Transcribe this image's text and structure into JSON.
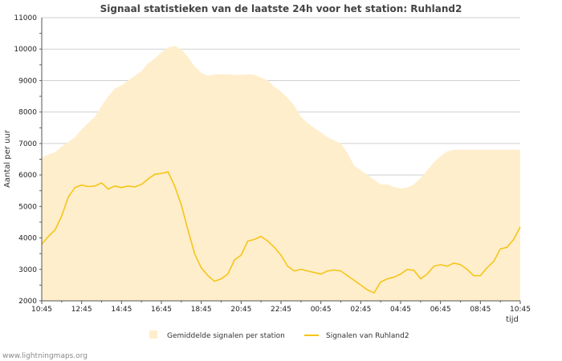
{
  "chart_data": {
    "type": "area",
    "title": "Signaal statistieken van de laatste 24h voor het station: Ruhland2",
    "xlabel": "tijd",
    "ylabel": "Aantal per uur",
    "ylim": [
      2000,
      11000
    ],
    "yticks": [
      2000,
      3000,
      4000,
      5000,
      6000,
      7000,
      8000,
      9000,
      10000,
      11000
    ],
    "x": [
      "10:45",
      "11:05",
      "11:25",
      "11:45",
      "12:05",
      "12:25",
      "12:45",
      "13:05",
      "13:25",
      "13:45",
      "14:05",
      "14:25",
      "14:45",
      "15:05",
      "15:25",
      "15:45",
      "16:05",
      "16:25",
      "16:45",
      "17:05",
      "17:25",
      "17:45",
      "18:05",
      "18:25",
      "18:45",
      "19:05",
      "19:25",
      "19:45",
      "20:05",
      "20:25",
      "20:45",
      "21:05",
      "21:25",
      "21:45",
      "22:05",
      "22:25",
      "22:45",
      "23:05",
      "23:25",
      "23:45",
      "00:05",
      "00:25",
      "00:45",
      "01:05",
      "01:25",
      "01:45",
      "02:05",
      "02:25",
      "02:45",
      "03:05",
      "03:25",
      "03:45",
      "04:05",
      "04:25",
      "04:45",
      "05:05",
      "05:25",
      "05:45",
      "06:05",
      "06:25",
      "06:45",
      "07:05",
      "07:25",
      "07:45",
      "08:05",
      "08:25",
      "08:45",
      "09:05",
      "09:25",
      "09:45",
      "10:05",
      "10:25",
      "10:45"
    ],
    "xticks": [
      "10:45",
      "12:45",
      "14:45",
      "16:45",
      "18:45",
      "20:45",
      "22:45",
      "00:45",
      "02:45",
      "04:45",
      "06:45",
      "08:45",
      "10:45"
    ],
    "series": [
      {
        "name": "Gemiddelde signalen per station",
        "style": "area",
        "color": "#ffeecc",
        "values": [
          6550,
          6650,
          6720,
          6900,
          7050,
          7200,
          7450,
          7650,
          7850,
          8200,
          8500,
          8750,
          8850,
          9000,
          9150,
          9300,
          9550,
          9700,
          9900,
          10050,
          10100,
          10000,
          9750,
          9450,
          9250,
          9150,
          9200,
          9200,
          9200,
          9180,
          9180,
          9200,
          9180,
          9100,
          9000,
          8800,
          8650,
          8450,
          8200,
          7850,
          7650,
          7500,
          7350,
          7200,
          7100,
          7000,
          6700,
          6300,
          6150,
          6000,
          5850,
          5700,
          5700,
          5620,
          5570,
          5600,
          5700,
          5900,
          6150,
          6400,
          6600,
          6750,
          6800,
          6800,
          6800,
          6800,
          6800,
          6800,
          6800,
          6800,
          6800,
          6800,
          6800
        ]
      },
      {
        "name": "Signalen van Ruhland2",
        "style": "line",
        "color": "#f5c518",
        "values": [
          3800,
          4050,
          4250,
          4700,
          5300,
          5600,
          5680,
          5630,
          5650,
          5750,
          5550,
          5650,
          5600,
          5650,
          5620,
          5700,
          5870,
          6020,
          6050,
          6100,
          5650,
          5050,
          4250,
          3500,
          3050,
          2800,
          2620,
          2700,
          2850,
          3300,
          3450,
          3900,
          3950,
          4050,
          3900,
          3700,
          3450,
          3100,
          2950,
          3000,
          2950,
          2900,
          2850,
          2950,
          2980,
          2950,
          2800,
          2650,
          2500,
          2350,
          2250,
          2600,
          2700,
          2750,
          2850,
          3000,
          2970,
          2700,
          2850,
          3100,
          3150,
          3100,
          3200,
          3150,
          3000,
          2800,
          2800,
          3050,
          3250,
          3650,
          3700,
          3950,
          4350
        ]
      }
    ],
    "legend": {
      "position": "bottom",
      "items": [
        "Gemiddelde signalen per station",
        "Signalen van Ruhland2"
      ]
    },
    "grid": "horizontal"
  },
  "credit": "www.lightningmaps.org"
}
